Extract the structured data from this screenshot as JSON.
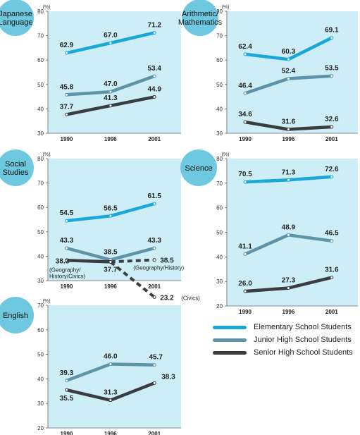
{
  "colors": {
    "elementary": "#1aa7d9",
    "junior": "#5e93a8",
    "senior": "#3a3d40",
    "panel_bg": "#cdeef6",
    "badge": "#6dc8e0"
  },
  "legend": [
    {
      "series_key": "elementary",
      "label": "Elementary School Students"
    },
    {
      "series_key": "junior",
      "label": "Junior High School Students"
    },
    {
      "series_key": "senior",
      "label": "Senior High School Students"
    }
  ],
  "chart_data": [
    {
      "type": "line",
      "subject": [
        "Japanese",
        "Language"
      ],
      "unit": "(%)",
      "x": [
        "1990",
        "1996",
        "2001"
      ],
      "ylim": [
        30,
        80
      ],
      "yticks": [
        30,
        40,
        50,
        60,
        70,
        80
      ],
      "grid": false,
      "series": [
        {
          "key": "elementary",
          "name": "Elementary School Students",
          "values": [
            62.9,
            67.0,
            71.2
          ],
          "labels": [
            "62.9",
            "67.0",
            "71.2"
          ]
        },
        {
          "key": "junior",
          "name": "Junior High School Students",
          "values": [
            45.8,
            47.0,
            53.4
          ],
          "labels": [
            "45.8",
            "47.0",
            "53.4"
          ]
        },
        {
          "key": "senior",
          "name": "Senior High School Students",
          "values": [
            37.7,
            41.3,
            44.9
          ],
          "labels": [
            "37.7",
            "41.3",
            "44.9"
          ]
        }
      ]
    },
    {
      "type": "line",
      "subject": [
        "Arithmetic/",
        "Mathematics"
      ],
      "unit": "(%)",
      "x": [
        "1990",
        "1996",
        "2001"
      ],
      "ylim": [
        30,
        80
      ],
      "yticks": [
        30,
        40,
        50,
        60,
        70,
        80
      ],
      "grid": false,
      "series": [
        {
          "key": "elementary",
          "name": "Elementary School Students",
          "values": [
            62.4,
            60.3,
            69.1
          ],
          "labels": [
            "62.4",
            "60.3",
            "69.1"
          ]
        },
        {
          "key": "junior",
          "name": "Junior High School Students",
          "values": [
            46.4,
            52.4,
            53.5
          ],
          "labels": [
            "46.4",
            "52.4",
            "53.5"
          ]
        },
        {
          "key": "senior",
          "name": "Senior High School Students",
          "values": [
            34.6,
            31.6,
            32.6
          ],
          "labels": [
            "34.6",
            "31.6",
            "32.6"
          ]
        }
      ]
    },
    {
      "type": "line",
      "subject": [
        "Social",
        "Studies"
      ],
      "unit": "(%)",
      "x": [
        "1990",
        "1996",
        "2001"
      ],
      "ylim": [
        30,
        80
      ],
      "yticks": [
        30,
        40,
        50,
        60,
        70,
        80
      ],
      "grid": false,
      "series": [
        {
          "key": "elementary",
          "name": "Elementary School Students",
          "values": [
            54.5,
            56.5,
            61.5
          ],
          "labels": [
            "54.5",
            "56.5",
            "61.5"
          ]
        },
        {
          "key": "junior",
          "name": "Junior High School Students",
          "values": [
            43.3,
            38.5,
            43.3
          ],
          "labels": [
            "43.3",
            "38.5",
            "43.3"
          ]
        },
        {
          "key": "senior",
          "name": "Senior High School Students",
          "values": [
            38.3,
            37.7,
            null
          ],
          "labels": [
            "38.3",
            "37.7",
            ""
          ]
        },
        {
          "key": "senior",
          "name": "Geography/History",
          "dashed": true,
          "values": [
            null,
            37.7,
            38.5
          ],
          "labels": [
            "",
            "",
            "38.5"
          ]
        },
        {
          "key": "senior",
          "name": "Civics",
          "dashed": true,
          "values": [
            null,
            37.7,
            23.2
          ],
          "labels": [
            "",
            "",
            "23.2"
          ]
        }
      ],
      "annotations": {
        "start_note": [
          "(Geography/",
          "History/Civics)"
        ],
        "geo_history": "(Geography/History)",
        "civics": "(Civics)"
      }
    },
    {
      "type": "line",
      "subject": [
        "Science"
      ],
      "unit": "(%)",
      "x": [
        "1990",
        "1996",
        "2001"
      ],
      "ylim": [
        20,
        80
      ],
      "yticks": [
        20,
        30,
        40,
        50,
        60,
        70,
        80
      ],
      "grid": false,
      "series": [
        {
          "key": "elementary",
          "name": "Elementary School Students",
          "values": [
            70.5,
            71.3,
            72.6
          ],
          "labels": [
            "70.5",
            "71.3",
            "72.6"
          ]
        },
        {
          "key": "junior",
          "name": "Junior High School Students",
          "values": [
            41.1,
            48.9,
            46.5
          ],
          "labels": [
            "41.1",
            "48.9",
            "46.5"
          ]
        },
        {
          "key": "senior",
          "name": "Senior High School Students",
          "values": [
            26.0,
            27.3,
            31.6
          ],
          "labels": [
            "26.0",
            "27.3",
            "31.6"
          ]
        }
      ]
    },
    {
      "type": "line",
      "subject": [
        "English"
      ],
      "unit": "(%)",
      "x": [
        "1990",
        "1996",
        "2001"
      ],
      "ylim": [
        20,
        70
      ],
      "yticks": [
        20,
        30,
        40,
        50,
        60,
        70
      ],
      "grid": false,
      "series": [
        {
          "key": "junior",
          "name": "Junior High School Students",
          "values": [
            39.3,
            46.0,
            45.7
          ],
          "labels": [
            "39.3",
            "46.0",
            "45.7"
          ]
        },
        {
          "key": "senior",
          "name": "Senior High School Students",
          "values": [
            35.5,
            31.3,
            38.3
          ],
          "labels": [
            "35.5",
            "31.3",
            "38.3"
          ]
        }
      ]
    }
  ]
}
